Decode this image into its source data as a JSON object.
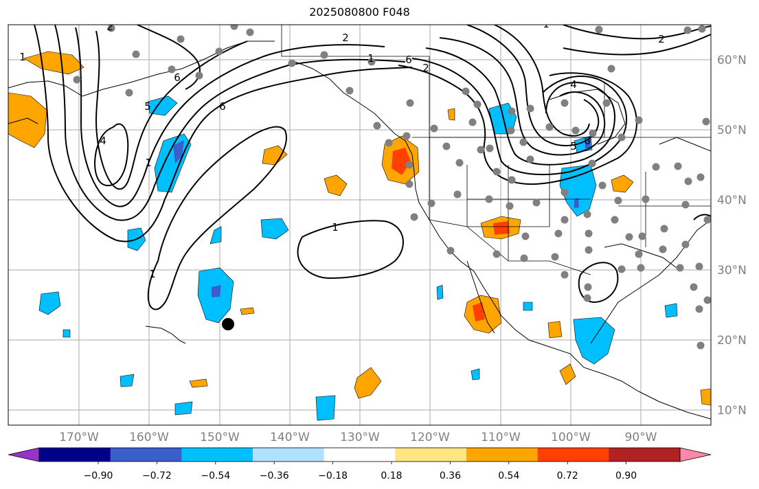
{
  "title": "2025080800 F048",
  "lat_labels": [
    "60°N",
    "50°N",
    "40°N",
    "30°N",
    "20°N",
    "10°N"
  ],
  "lon_labels": [
    "170°W",
    "160°W",
    "150°W",
    "140°W",
    "130°W",
    "120°W",
    "110°W",
    "100°W",
    "90°W"
  ],
  "colorbar": {
    "tick_labels": [
      "−0.90",
      "−0.72",
      "−0.54",
      "−0.36",
      "−0.18",
      "0.18",
      "0.36",
      "0.54",
      "0.72",
      "0.90"
    ],
    "colors": [
      "#9932cc",
      "#00008b",
      "#3a5fcd",
      "#00bfff",
      "#b0e2ff",
      "#ffffff",
      "#ffe680",
      "#ffa500",
      "#ff4000",
      "#b22222",
      "#ff88aa"
    ]
  },
  "contour_labels": [
    "1",
    "2",
    "6",
    "5",
    "4",
    "1",
    "6",
    "2",
    "1",
    "6",
    "2",
    "1",
    "4",
    "5",
    "6",
    "1",
    "1",
    "2"
  ],
  "colors": {
    "grid": "#a0a0a0",
    "coast": "#000000",
    "station": "#808080",
    "contour": "#000000"
  }
}
